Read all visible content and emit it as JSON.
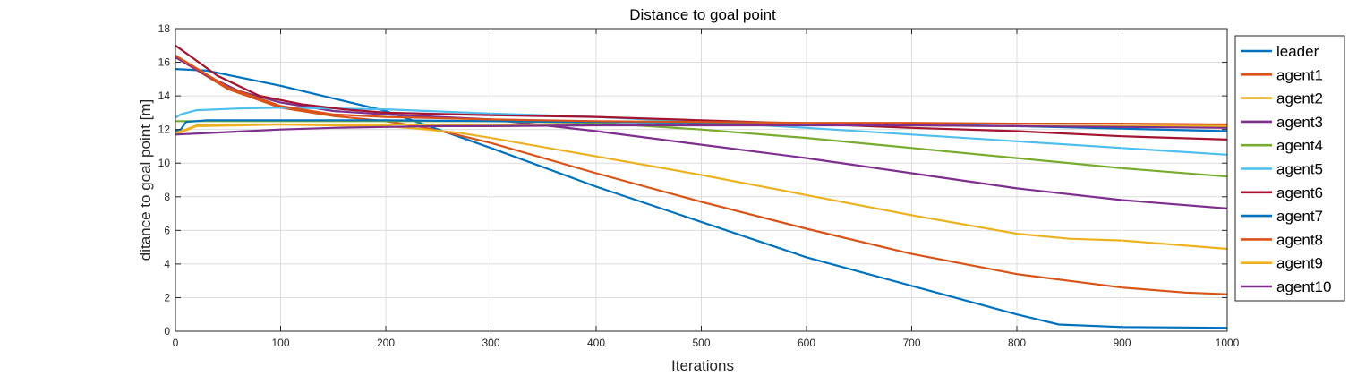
{
  "chart_data": {
    "type": "line",
    "title": "Distance to goal point",
    "xlabel": "Iterations",
    "ylabel": "ditance to goal point [m]",
    "xlim": [
      0,
      1000
    ],
    "ylim": [
      0,
      18
    ],
    "xticks": [
      0,
      100,
      200,
      300,
      400,
      500,
      600,
      700,
      800,
      900,
      1000
    ],
    "yticks": [
      0,
      2,
      4,
      6,
      8,
      10,
      12,
      14,
      16,
      18
    ],
    "grid": true,
    "legend_position": "right",
    "series": [
      {
        "name": "leader",
        "color": "#0072BD",
        "x": [
          0,
          30,
          100,
          200,
          300,
          400,
          500,
          600,
          700,
          800,
          840,
          900,
          1000
        ],
        "y": [
          15.6,
          15.5,
          14.6,
          13.1,
          10.9,
          8.6,
          6.5,
          4.4,
          2.7,
          1.0,
          0.4,
          0.25,
          0.2
        ]
      },
      {
        "name": "agent1",
        "color": "#D95319",
        "x": [
          0,
          50,
          100,
          150,
          200,
          230,
          260,
          300,
          400,
          500,
          600,
          700,
          800,
          900,
          960,
          1000
        ],
        "y": [
          16.3,
          14.4,
          13.3,
          12.8,
          12.5,
          12.2,
          11.8,
          11.2,
          9.4,
          7.7,
          6.1,
          4.6,
          3.4,
          2.6,
          2.3,
          2.2
        ]
      },
      {
        "name": "agent2",
        "color": "#EDB120",
        "x": [
          0,
          20,
          60,
          100,
          150,
          200,
          230,
          270,
          300,
          400,
          500,
          600,
          700,
          800,
          850,
          900,
          1000
        ],
        "y": [
          11.7,
          12.2,
          12.25,
          12.3,
          12.25,
          12.2,
          12.05,
          11.8,
          11.5,
          10.4,
          9.3,
          8.1,
          6.9,
          5.8,
          5.5,
          5.4,
          4.9
        ]
      },
      {
        "name": "agent3",
        "color": "#7E2F8E",
        "x": [
          0,
          30,
          60,
          100,
          150,
          200,
          250,
          300,
          400,
          500,
          600,
          700,
          800,
          900,
          1000
        ],
        "y": [
          16.3,
          15.2,
          14.3,
          13.6,
          13.1,
          12.9,
          12.75,
          12.6,
          11.9,
          11.1,
          10.3,
          9.4,
          8.5,
          7.8,
          7.3
        ]
      },
      {
        "name": "agent4",
        "color": "#77AC30",
        "x": [
          0,
          50,
          100,
          200,
          300,
          400,
          500,
          600,
          700,
          800,
          900,
          1000
        ],
        "y": [
          12.5,
          12.5,
          12.5,
          12.5,
          12.5,
          12.4,
          12.0,
          11.5,
          10.9,
          10.3,
          9.7,
          9.2
        ]
      },
      {
        "name": "agent5",
        "color": "#4DBEEE",
        "x": [
          0,
          5,
          20,
          60,
          100,
          150,
          200,
          300,
          400,
          500,
          600,
          700,
          800,
          900,
          1000
        ],
        "y": [
          12.7,
          12.9,
          13.15,
          13.25,
          13.3,
          13.25,
          13.2,
          12.95,
          12.75,
          12.45,
          12.1,
          11.7,
          11.3,
          10.9,
          10.5
        ]
      },
      {
        "name": "agent6",
        "color": "#A2142F",
        "x": [
          0,
          40,
          80,
          120,
          160,
          200,
          300,
          400,
          500,
          600,
          700,
          800,
          900,
          1000
        ],
        "y": [
          17.0,
          15.2,
          14.0,
          13.5,
          13.2,
          13.0,
          12.85,
          12.75,
          12.55,
          12.35,
          12.1,
          11.9,
          11.6,
          11.4
        ]
      },
      {
        "name": "agent7",
        "color": "#0072BD",
        "x": [
          0,
          5,
          10,
          30,
          100,
          200,
          300,
          400,
          500,
          600,
          700,
          800,
          900,
          1000
        ],
        "y": [
          11.9,
          12.0,
          12.45,
          12.55,
          12.55,
          12.55,
          12.5,
          12.45,
          12.4,
          12.35,
          12.3,
          12.2,
          12.05,
          11.9
        ]
      },
      {
        "name": "agent8",
        "color": "#D95319",
        "x": [
          0,
          50,
          100,
          150,
          200,
          300,
          400,
          500,
          600,
          700,
          800,
          900,
          1000
        ],
        "y": [
          16.4,
          14.5,
          13.4,
          12.9,
          12.75,
          12.6,
          12.5,
          12.45,
          12.4,
          12.4,
          12.35,
          12.35,
          12.3
        ]
      },
      {
        "name": "agent9",
        "color": "#EDB120",
        "x": [
          0,
          10,
          20,
          50,
          100,
          200,
          300,
          400,
          500,
          600,
          700,
          800,
          900,
          1000
        ],
        "y": [
          11.8,
          12.0,
          12.25,
          12.3,
          12.3,
          12.3,
          12.3,
          12.3,
          12.3,
          12.3,
          12.25,
          12.2,
          12.2,
          12.2
        ]
      },
      {
        "name": "agent10",
        "color": "#7E2F8E",
        "x": [
          0,
          50,
          100,
          150,
          200,
          250,
          300,
          400,
          500,
          600,
          700,
          800,
          900,
          1000
        ],
        "y": [
          11.7,
          11.85,
          12.0,
          12.1,
          12.15,
          12.2,
          12.2,
          12.25,
          12.25,
          12.25,
          12.25,
          12.2,
          12.15,
          12.1
        ]
      }
    ]
  }
}
